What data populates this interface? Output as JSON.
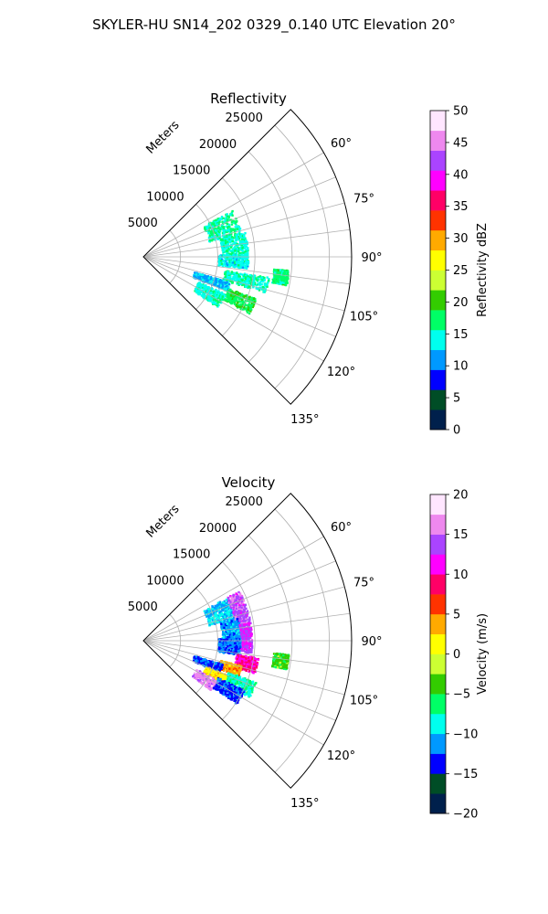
{
  "figure": {
    "suptitle": "SKYLER-HU  SN14_202  0329_0.140 UTC Elevation 20°"
  },
  "chart_data": [
    {
      "type": "heatmap",
      "projection": "polar-sector",
      "title": "Reflectivity",
      "range_label": "Meters",
      "range_ticks": [
        5000,
        10000,
        15000,
        20000,
        25000
      ],
      "range_tick_labels": [
        "5000",
        "10000",
        "15000",
        "20000",
        "25000"
      ],
      "range_max": 28000,
      "azimuth_range_deg": [
        45,
        135
      ],
      "azimuth_ticks": [
        60,
        75,
        90,
        105,
        120,
        135
      ],
      "azimuth_tick_labels": [
        "60°",
        "75°",
        "90°",
        "105°",
        "120°",
        "135°"
      ],
      "grid": true,
      "colorbar": {
        "label": "Reflectivity dBZ",
        "min": 0,
        "max": 50,
        "ticks": [
          0,
          5,
          10,
          15,
          20,
          25,
          30,
          35,
          40,
          45,
          50
        ],
        "tick_labels": [
          "0",
          "5",
          "10",
          "15",
          "20",
          "25",
          "30",
          "35",
          "40",
          "45",
          "50"
        ],
        "colormap": [
          "#00204c",
          "#004d26",
          "#0000ff",
          "#0099ff",
          "#00ffee",
          "#00ff66",
          "#33cc00",
          "#ccff33",
          "#ffff00",
          "#ffaa00",
          "#ff3300",
          "#ff0066",
          "#ff00ff",
          "#aa44ff",
          "#ee88ee",
          "#ffe6ff"
        ]
      },
      "echo_clusters": [
        {
          "az": [
            62,
            76
          ],
          "range": [
            9000,
            13500
          ],
          "value": 16
        },
        {
          "az": [
            76,
            88
          ],
          "range": [
            10500,
            14000
          ],
          "value": 15
        },
        {
          "az": [
            88,
            96
          ],
          "range": [
            10000,
            14000
          ],
          "value": 14
        },
        {
          "az": [
            95,
            101
          ],
          "range": [
            17500,
            19500
          ],
          "value": 17
        },
        {
          "az": [
            99,
            106
          ],
          "range": [
            11000,
            17000
          ],
          "value": 15
        },
        {
          "az": [
            106,
            112
          ],
          "range": [
            7000,
            12000
          ],
          "value": 12
        },
        {
          "az": [
            110,
            118
          ],
          "range": [
            12000,
            16000
          ],
          "value": 18
        },
        {
          "az": [
            114,
            124
          ],
          "range": [
            8000,
            12000
          ],
          "value": 15
        }
      ]
    },
    {
      "type": "heatmap",
      "projection": "polar-sector",
      "title": "Velocity",
      "range_label": "Meters",
      "range_ticks": [
        5000,
        10000,
        15000,
        20000,
        25000
      ],
      "range_tick_labels": [
        "5000",
        "10000",
        "15000",
        "20000",
        "25000"
      ],
      "range_max": 28000,
      "azimuth_range_deg": [
        45,
        135
      ],
      "azimuth_ticks": [
        60,
        75,
        90,
        105,
        120,
        135
      ],
      "azimuth_tick_labels": [
        "60°",
        "75°",
        "90°",
        "105°",
        "120°",
        "135°"
      ],
      "grid": true,
      "colorbar": {
        "label": "Velocity (m/s)",
        "min": -20,
        "max": 20,
        "ticks": [
          -20,
          -15,
          -10,
          -5,
          0,
          5,
          10,
          15,
          20
        ],
        "tick_labels": [
          "−20",
          "−15",
          "−10",
          "−5",
          "0",
          "5",
          "10",
          "15",
          "20"
        ],
        "colormap": [
          "#00204c",
          "#004d26",
          "#0000ff",
          "#0099ff",
          "#00ffee",
          "#00ff66",
          "#33cc00",
          "#ccff33",
          "#ffff00",
          "#ffaa00",
          "#ff3300",
          "#ff0066",
          "#ff00ff",
          "#aa44ff",
          "#ee88ee",
          "#ffe6ff"
        ]
      },
      "echo_clusters": [
        {
          "az": [
            62,
            76
          ],
          "range": [
            9000,
            12500
          ],
          "value": -10
        },
        {
          "az": [
            62,
            80
          ],
          "range": [
            12500,
            14500
          ],
          "value": 14
        },
        {
          "az": [
            76,
            88
          ],
          "range": [
            10500,
            13000
          ],
          "value": -11
        },
        {
          "az": [
            80,
            96
          ],
          "range": [
            13000,
            14500
          ],
          "value": 13
        },
        {
          "az": [
            88,
            98
          ],
          "range": [
            10000,
            13000
          ],
          "value": -12
        },
        {
          "az": [
            95,
            101
          ],
          "range": [
            17500,
            19500
          ],
          "value": -4
        },
        {
          "az": [
            98,
            106
          ],
          "range": [
            12500,
            15500
          ],
          "value": 10
        },
        {
          "az": [
            104,
            110
          ],
          "range": [
            10500,
            13500
          ],
          "value": 4
        },
        {
          "az": [
            106,
            112
          ],
          "range": [
            7000,
            11000
          ],
          "value": -13
        },
        {
          "az": [
            110,
            118
          ],
          "range": [
            12000,
            16000
          ],
          "value": -8
        },
        {
          "az": [
            112,
            118
          ],
          "range": [
            9000,
            12000
          ],
          "value": 2
        },
        {
          "az": [
            116,
            124
          ],
          "range": [
            11000,
            15000
          ],
          "value": -13
        },
        {
          "az": [
            118,
            126
          ],
          "range": [
            8000,
            11000
          ],
          "value": 16
        }
      ]
    }
  ]
}
